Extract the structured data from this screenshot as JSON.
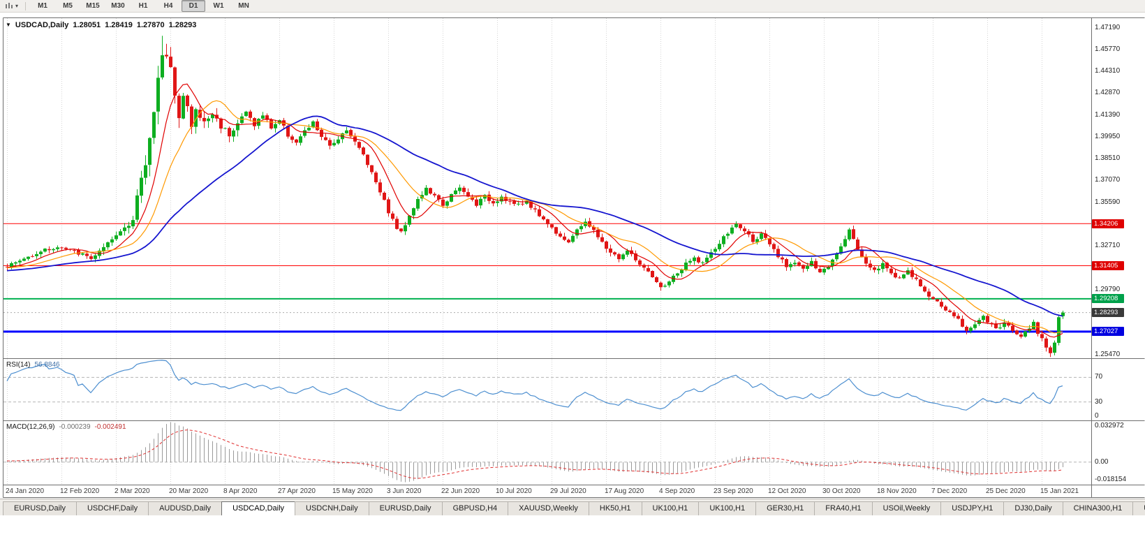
{
  "toolbar": {
    "timeframes": [
      "M1",
      "M5",
      "M15",
      "M30",
      "H1",
      "H4",
      "D1",
      "W1",
      "MN"
    ],
    "active_timeframe": "D1",
    "icons": {
      "chart_menu": "candlestick-chart-icon",
      "dropdown": "caret-down-icon"
    }
  },
  "chart_header": {
    "marker_icon": "triangle-down-icon",
    "symbol": "USDCAD,Daily",
    "open": "1.28051",
    "high": "1.28419",
    "low": "1.27870",
    "close": "1.28293"
  },
  "price_axis": {
    "labels": [
      "1.47190",
      "1.45770",
      "1.44310",
      "1.42870",
      "1.41390",
      "1.39950",
      "1.38510",
      "1.37070",
      "1.35590",
      "1.32710",
      "1.29790",
      "1.25470"
    ],
    "badges": [
      {
        "text": "1.34206",
        "color": "#df0000"
      },
      {
        "text": "1.31405",
        "color": "#df0000"
      },
      {
        "text": "1.29208",
        "color": "#00a14b"
      },
      {
        "text": "1.28293",
        "color": "#3a3a3a"
      },
      {
        "text": "1.27027",
        "color": "#0000e0"
      }
    ]
  },
  "date_axis": {
    "labels": [
      "24 Jan 2020",
      "12 Feb 2020",
      "2 Mar 2020",
      "20 Mar 2020",
      "8 Apr 2020",
      "27 Apr 2020",
      "15 May 2020",
      "3 Jun 2020",
      "22 Jun 2020",
      "10 Jul 2020",
      "29 Jul 2020",
      "17 Aug 2020",
      "4 Sep 2020",
      "23 Sep 2020",
      "12 Oct 2020",
      "30 Oct 2020",
      "18 Nov 2020",
      "7 Dec 2020",
      "25 Dec 2020",
      "15 Jan 2021"
    ]
  },
  "rsi_panel": {
    "name": "RSI(14)",
    "value": "56.8846",
    "level_labels": [
      "70",
      "30",
      "0"
    ]
  },
  "macd_panel": {
    "name": "MACD(12,26,9)",
    "value_main": "-0.000239",
    "value_signal": "-0.002491",
    "axis_labels": [
      "0.032972",
      "0.00",
      "-0.018154"
    ]
  },
  "tabs": [
    "EURUSD,Daily",
    "USDCHF,Daily",
    "AUDUSD,Daily",
    "USDCAD,Daily",
    "USDCNH,Daily",
    "EURUSD,Daily",
    "GBPUSD,H4",
    "XAUUSD,Weekly",
    "HK50,H1",
    "UK100,H1",
    "UK100,H1",
    "GER30,H1",
    "FRA40,H1",
    "USOil,Weekly",
    "USDJPY,H1",
    "DJ30,Daily",
    "CHINA300,H1",
    "U"
  ],
  "active_tab_index": 3,
  "chart_data": {
    "type": "candlestick",
    "symbol": "USDCAD",
    "timeframe": "Daily",
    "visible_range": {
      "first_date": "24 Jan 2020",
      "last_date": "15 Jan 2021",
      "price_axis_min": 1.2547,
      "price_axis_max": 1.4719
    },
    "last_candle": {
      "open": 1.28051,
      "high": 1.28419,
      "low": 1.2787,
      "close": 1.28293
    },
    "horizontal_lines": [
      {
        "price": 1.34206,
        "color": "#ff0000",
        "width": 1
      },
      {
        "price": 1.31405,
        "color": "#ff0000",
        "width": 1
      },
      {
        "price": 1.29208,
        "color": "#00b050",
        "width": 2
      },
      {
        "price": 1.28293,
        "color": "#aaaaaa",
        "width": 1,
        "dashed": true
      },
      {
        "price": 1.27027,
        "color": "#0000ff",
        "width": 3
      }
    ],
    "moving_averages": [
      {
        "period": 8,
        "color": "#e00000"
      },
      {
        "period": 16,
        "color": "#ff9900"
      },
      {
        "period": 40,
        "color": "#1515cf"
      }
    ],
    "indicators": [
      {
        "name": "RSI",
        "period": 14,
        "last": 56.8846,
        "levels": [
          70,
          30
        ]
      },
      {
        "name": "MACD",
        "fast": 12,
        "slow": 26,
        "signal": 9,
        "last_main": -0.000239,
        "last_signal": -0.002491,
        "scale_max": 0.032972,
        "scale_min": -0.018154
      }
    ],
    "candle_count": 253,
    "grid_step_candles": 13,
    "seed": 1337,
    "close_anchors": [
      [
        0,
        1.314
      ],
      [
        4,
        1.3185
      ],
      [
        8,
        1.324
      ],
      [
        12,
        1.3262
      ],
      [
        16,
        1.3235
      ],
      [
        20,
        1.319
      ],
      [
        23,
        1.3255
      ],
      [
        26,
        1.334
      ],
      [
        28,
        1.34
      ],
      [
        30,
        1.345
      ],
      [
        31,
        1.36
      ],
      [
        32,
        1.37
      ],
      [
        33,
        1.382
      ],
      [
        34,
        1.398
      ],
      [
        35,
        1.419
      ],
      [
        36,
        1.442
      ],
      [
        37,
        1.454
      ],
      [
        38,
        1.45
      ],
      [
        39,
        1.442
      ],
      [
        40,
        1.431
      ],
      [
        41,
        1.416
      ],
      [
        42,
        1.427
      ],
      [
        43,
        1.419
      ],
      [
        44,
        1.406
      ],
      [
        45,
        1.417
      ],
      [
        47,
        1.409
      ],
      [
        49,
        1.415
      ],
      [
        51,
        1.407
      ],
      [
        53,
        1.402
      ],
      [
        55,
        1.409
      ],
      [
        57,
        1.416
      ],
      [
        59,
        1.408
      ],
      [
        61,
        1.414
      ],
      [
        63,
        1.406
      ],
      [
        65,
        1.411
      ],
      [
        67,
        1.401
      ],
      [
        69,
        1.396
      ],
      [
        71,
        1.403
      ],
      [
        73,
        1.409
      ],
      [
        75,
        1.4
      ],
      [
        77,
        1.393
      ],
      [
        79,
        1.399
      ],
      [
        81,
        1.405
      ],
      [
        83,
        1.396
      ],
      [
        85,
        1.388
      ],
      [
        87,
        1.376
      ],
      [
        89,
        1.364
      ],
      [
        91,
        1.35
      ],
      [
        93,
        1.339
      ],
      [
        94,
        1.336
      ],
      [
        96,
        1.348
      ],
      [
        98,
        1.358
      ],
      [
        100,
        1.365
      ],
      [
        102,
        1.36
      ],
      [
        104,
        1.3545
      ],
      [
        106,
        1.361
      ],
      [
        108,
        1.3655
      ],
      [
        110,
        1.36
      ],
      [
        112,
        1.355
      ],
      [
        114,
        1.36
      ],
      [
        116,
        1.356
      ],
      [
        118,
        1.36
      ],
      [
        120,
        1.3565
      ],
      [
        122,
        1.354
      ],
      [
        124,
        1.357
      ],
      [
        126,
        1.3505
      ],
      [
        128,
        1.345
      ],
      [
        130,
        1.339
      ],
      [
        132,
        1.334
      ],
      [
        134,
        1.33
      ],
      [
        136,
        1.337
      ],
      [
        138,
        1.344
      ],
      [
        140,
        1.337
      ],
      [
        142,
        1.329
      ],
      [
        144,
        1.323
      ],
      [
        146,
        1.319
      ],
      [
        148,
        1.324
      ],
      [
        150,
        1.318
      ],
      [
        152,
        1.312
      ],
      [
        154,
        1.306
      ],
      [
        156,
        1.299
      ],
      [
        158,
        1.304
      ],
      [
        160,
        1.309
      ],
      [
        162,
        1.315
      ],
      [
        164,
        1.319
      ],
      [
        166,
        1.316
      ],
      [
        168,
        1.322
      ],
      [
        170,
        1.329
      ],
      [
        172,
        1.336
      ],
      [
        174,
        1.3415
      ],
      [
        176,
        1.337
      ],
      [
        178,
        1.331
      ],
      [
        180,
        1.3345
      ],
      [
        182,
        1.328
      ],
      [
        184,
        1.32
      ],
      [
        186,
        1.314
      ],
      [
        188,
        1.317
      ],
      [
        190,
        1.312
      ],
      [
        192,
        1.316
      ],
      [
        194,
        1.309
      ],
      [
        196,
        1.314
      ],
      [
        198,
        1.323
      ],
      [
        200,
        1.333
      ],
      [
        201,
        1.338
      ],
      [
        203,
        1.325
      ],
      [
        205,
        1.316
      ],
      [
        207,
        1.311
      ],
      [
        209,
        1.315
      ],
      [
        211,
        1.309
      ],
      [
        213,
        1.306
      ],
      [
        215,
        1.31
      ],
      [
        217,
        1.304
      ],
      [
        219,
        1.297
      ],
      [
        221,
        1.292
      ],
      [
        223,
        1.287
      ],
      [
        225,
        1.283
      ],
      [
        227,
        1.278
      ],
      [
        229,
        1.2705
      ],
      [
        231,
        1.276
      ],
      [
        233,
        1.28
      ],
      [
        234,
        1.277
      ],
      [
        236,
        1.272
      ],
      [
        238,
        1.276
      ],
      [
        240,
        1.271
      ],
      [
        242,
        1.268
      ],
      [
        244,
        1.273
      ],
      [
        245,
        1.276
      ],
      [
        246,
        1.27
      ],
      [
        247,
        1.266
      ],
      [
        248,
        1.26
      ],
      [
        249,
        1.256
      ],
      [
        250,
        1.263
      ],
      [
        251,
        1.28
      ],
      [
        252,
        1.28293
      ]
    ],
    "extremes": [
      {
        "i": 37,
        "high": 1.4668
      },
      {
        "i": 38,
        "high": 1.4615
      },
      {
        "i": 174,
        "high": 1.3421
      },
      {
        "i": 201,
        "high": 1.3392
      },
      {
        "i": 249,
        "low": 1.2547
      }
    ],
    "colors": {
      "bull": "#0eae20",
      "bear": "#e01616",
      "grid": "#d4d4d4",
      "rsi_line": "#4d8fd0",
      "macd_hist": "#9a9a9a",
      "macd_signal": "#e03030",
      "level_dash": "#b4b4b4"
    }
  }
}
